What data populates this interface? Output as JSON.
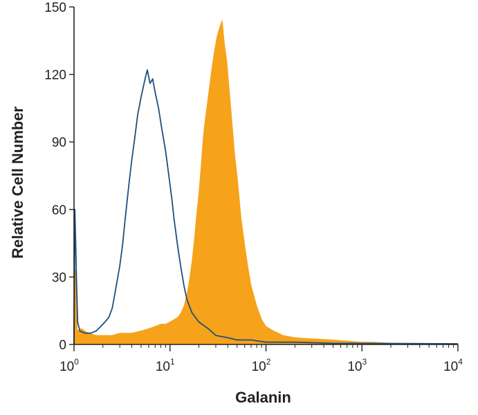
{
  "chart_data": {
    "type": "histogram",
    "title": "",
    "xlabel": "Galanin",
    "ylabel": "Relative Cell Number",
    "x_scale": "log",
    "xlim": [
      1,
      10000
    ],
    "ylim": [
      0,
      150
    ],
    "x_ticks": [
      {
        "value": 1,
        "base": "10",
        "exp": "0"
      },
      {
        "value": 10,
        "base": "10",
        "exp": "1"
      },
      {
        "value": 100,
        "base": "10",
        "exp": "2"
      },
      {
        "value": 1000,
        "base": "10",
        "exp": "3"
      },
      {
        "value": 10000,
        "base": "10",
        "exp": "4"
      }
    ],
    "y_ticks": [
      {
        "value": 0,
        "label": "0"
      },
      {
        "value": 30,
        "label": "30"
      },
      {
        "value": 60,
        "label": "60"
      },
      {
        "value": 90,
        "label": "90"
      },
      {
        "value": 120,
        "label": "120"
      },
      {
        "value": 150,
        "label": "150"
      }
    ],
    "grid": false,
    "legend": "none",
    "series": [
      {
        "style": "filled",
        "color": "#f7a21b",
        "points": [
          [
            1.0,
            0
          ],
          [
            1.02,
            34
          ],
          [
            1.05,
            30
          ],
          [
            1.08,
            6
          ],
          [
            1.2,
            7
          ],
          [
            1.4,
            5
          ],
          [
            1.7,
            4
          ],
          [
            2.0,
            4
          ],
          [
            2.5,
            4
          ],
          [
            3.0,
            5
          ],
          [
            3.5,
            5
          ],
          [
            4.0,
            5
          ],
          [
            5.0,
            6
          ],
          [
            6.0,
            7
          ],
          [
            7.0,
            8
          ],
          [
            8.0,
            9
          ],
          [
            9.0,
            9
          ],
          [
            10.0,
            10
          ],
          [
            11.0,
            11
          ],
          [
            12.0,
            12
          ],
          [
            13.0,
            14
          ],
          [
            14.0,
            17
          ],
          [
            15.0,
            22
          ],
          [
            16.0,
            29
          ],
          [
            17.0,
            37
          ],
          [
            18.0,
            47
          ],
          [
            19.0,
            58
          ],
          [
            20.0,
            67
          ],
          [
            21.0,
            78
          ],
          [
            22.0,
            90
          ],
          [
            23.0,
            98
          ],
          [
            25.0,
            110
          ],
          [
            27.0,
            121
          ],
          [
            29.0,
            130
          ],
          [
            31.0,
            137
          ],
          [
            33.0,
            141
          ],
          [
            35.0,
            144
          ],
          [
            36.0,
            138
          ],
          [
            37.0,
            133
          ],
          [
            39.0,
            126
          ],
          [
            41.0,
            115
          ],
          [
            44.0,
            100
          ],
          [
            47.0,
            85
          ],
          [
            50.0,
            75
          ],
          [
            55.0,
            56
          ],
          [
            60.0,
            44
          ],
          [
            65.0,
            34
          ],
          [
            70.0,
            26
          ],
          [
            80.0,
            17
          ],
          [
            90.0,
            11
          ],
          [
            100.0,
            8
          ],
          [
            120.0,
            6
          ],
          [
            150.0,
            4
          ],
          [
            200.0,
            3
          ],
          [
            300.0,
            2.5
          ],
          [
            500.0,
            2
          ],
          [
            700.0,
            1.5
          ],
          [
            1000.0,
            1
          ],
          [
            1300.0,
            1
          ],
          [
            2000.0,
            0.5
          ],
          [
            4000.0,
            0.5
          ],
          [
            10000.0,
            0.3
          ]
        ]
      },
      {
        "style": "outline",
        "color": "#1c4f7c",
        "points": [
          [
            1.0,
            0
          ],
          [
            1.02,
            60
          ],
          [
            1.04,
            45
          ],
          [
            1.06,
            30
          ],
          [
            1.09,
            10
          ],
          [
            1.15,
            6
          ],
          [
            1.3,
            5
          ],
          [
            1.5,
            5
          ],
          [
            1.7,
            6
          ],
          [
            1.9,
            8
          ],
          [
            2.1,
            10
          ],
          [
            2.3,
            12
          ],
          [
            2.5,
            16
          ],
          [
            2.7,
            24
          ],
          [
            3.0,
            35
          ],
          [
            3.2,
            44
          ],
          [
            3.4,
            55
          ],
          [
            3.6,
            65
          ],
          [
            3.8,
            74
          ],
          [
            4.0,
            82
          ],
          [
            4.3,
            92
          ],
          [
            4.6,
            102
          ],
          [
            5.0,
            110
          ],
          [
            5.5,
            118
          ],
          [
            5.8,
            122
          ],
          [
            6.2,
            116
          ],
          [
            6.6,
            118
          ],
          [
            7.0,
            112
          ],
          [
            7.6,
            105
          ],
          [
            8.2,
            96
          ],
          [
            9.0,
            86
          ],
          [
            9.8,
            74
          ],
          [
            10.5,
            64
          ],
          [
            11.0,
            56
          ],
          [
            12.0,
            44
          ],
          [
            13.0,
            34
          ],
          [
            14.0,
            26
          ],
          [
            15.0,
            20
          ],
          [
            17.0,
            14
          ],
          [
            20.0,
            10
          ],
          [
            25.0,
            7
          ],
          [
            30.0,
            4
          ],
          [
            40.0,
            3
          ],
          [
            50.0,
            2
          ],
          [
            70.0,
            2
          ],
          [
            100.0,
            1
          ],
          [
            200.0,
            1
          ],
          [
            500.0,
            0.5
          ],
          [
            1000.0,
            0.5
          ],
          [
            10000.0,
            0.3
          ]
        ]
      }
    ]
  }
}
